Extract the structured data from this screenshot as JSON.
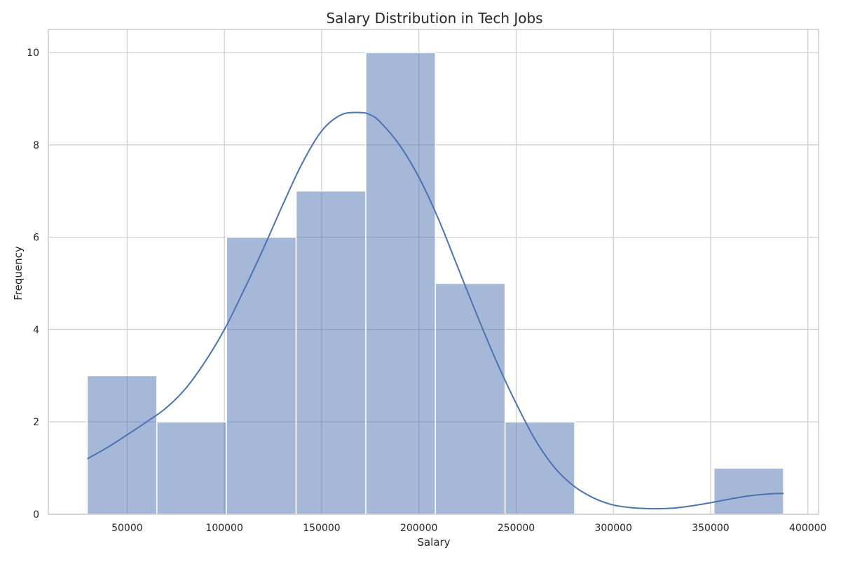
{
  "chart_data": {
    "type": "bar",
    "title": "Salary Distribution in Tech Jobs",
    "xlabel": "Salary",
    "ylabel": "Frequency",
    "xlim": [
      9500,
      405500
    ],
    "ylim": [
      0,
      10.5
    ],
    "xticks": [
      50000,
      100000,
      150000,
      200000,
      250000,
      300000,
      350000,
      400000
    ],
    "yticks": [
      0,
      2,
      4,
      6,
      8,
      10
    ],
    "grid": true,
    "bins": [
      {
        "start": 29500,
        "end": 65300,
        "count": 3
      },
      {
        "start": 65300,
        "end": 101100,
        "count": 2
      },
      {
        "start": 101100,
        "end": 136900,
        "count": 6
      },
      {
        "start": 136900,
        "end": 172700,
        "count": 7
      },
      {
        "start": 172700,
        "end": 208500,
        "count": 10
      },
      {
        "start": 208500,
        "end": 244300,
        "count": 5
      },
      {
        "start": 244300,
        "end": 280100,
        "count": 2
      },
      {
        "start": 280100,
        "end": 315900,
        "count": 0
      },
      {
        "start": 315900,
        "end": 351700,
        "count": 0
      },
      {
        "start": 351700,
        "end": 387500,
        "count": 1
      }
    ],
    "kde": {
      "x": [
        29500,
        40000,
        50000,
        60000,
        70000,
        80000,
        90000,
        100000,
        110000,
        120000,
        130000,
        140000,
        150000,
        160000,
        170000,
        175000,
        180000,
        190000,
        200000,
        210000,
        220000,
        230000,
        240000,
        250000,
        260000,
        270000,
        280000,
        290000,
        300000,
        310000,
        320000,
        330000,
        340000,
        350000,
        360000,
        370000,
        380000,
        387500
      ],
      "y": [
        1.2,
        1.45,
        1.72,
        2.0,
        2.3,
        2.72,
        3.3,
        4.0,
        4.85,
        5.75,
        6.7,
        7.6,
        8.3,
        8.65,
        8.7,
        8.65,
        8.5,
        8.0,
        7.3,
        6.4,
        5.35,
        4.3,
        3.3,
        2.4,
        1.6,
        1.0,
        0.6,
        0.35,
        0.2,
        0.14,
        0.12,
        0.13,
        0.18,
        0.25,
        0.33,
        0.4,
        0.44,
        0.45
      ]
    },
    "colors": {
      "bar": "#a5b7d8",
      "bar_edge": "#ffffff",
      "kde": "#4c72b0",
      "grid": "#cccccc",
      "spine": "#cccccc"
    }
  }
}
